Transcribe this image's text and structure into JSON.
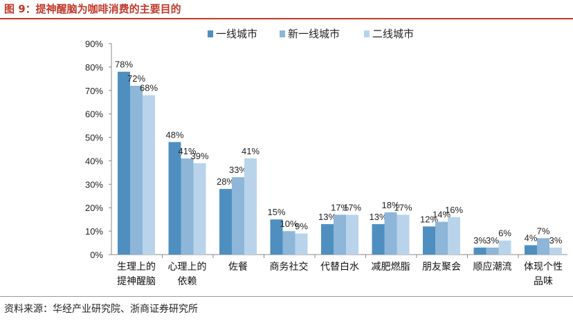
{
  "title": "图 9：提神醒脑为咖啡消费的主要目的",
  "source": "资料来源：华经产业研究院、浙商证券研究所",
  "chart_data": {
    "type": "bar",
    "categories": [
      [
        "生理上的",
        "提神醒脑"
      ],
      [
        "心理上的",
        "依赖"
      ],
      [
        "佐餐"
      ],
      [
        "商务社交"
      ],
      [
        "代替白水"
      ],
      [
        "减肥燃脂"
      ],
      [
        "朋友聚会"
      ],
      [
        "顺应潮流"
      ],
      [
        "体现个性",
        "品味"
      ]
    ],
    "series": [
      {
        "name": "一线城市",
        "color": "#4f8fc0",
        "values": [
          78,
          48,
          28,
          15,
          13,
          13,
          12,
          3,
          4
        ]
      },
      {
        "name": "新一线城市",
        "color": "#8db6d8",
        "values": [
          72,
          41,
          33,
          10,
          17,
          18,
          14,
          3,
          7
        ]
      },
      {
        "name": "二线城市",
        "color": "#b9d4ea",
        "values": [
          68,
          39,
          41,
          9,
          17,
          17,
          16,
          6,
          3
        ]
      }
    ],
    "ylim": [
      0,
      90
    ],
    "yticks": [
      "0%",
      "10%",
      "20%",
      "30%",
      "40%",
      "50%",
      "60%",
      "70%",
      "80%",
      "90%"
    ],
    "value_suffix": "%",
    "legend_position": "top",
    "grid": false
  }
}
